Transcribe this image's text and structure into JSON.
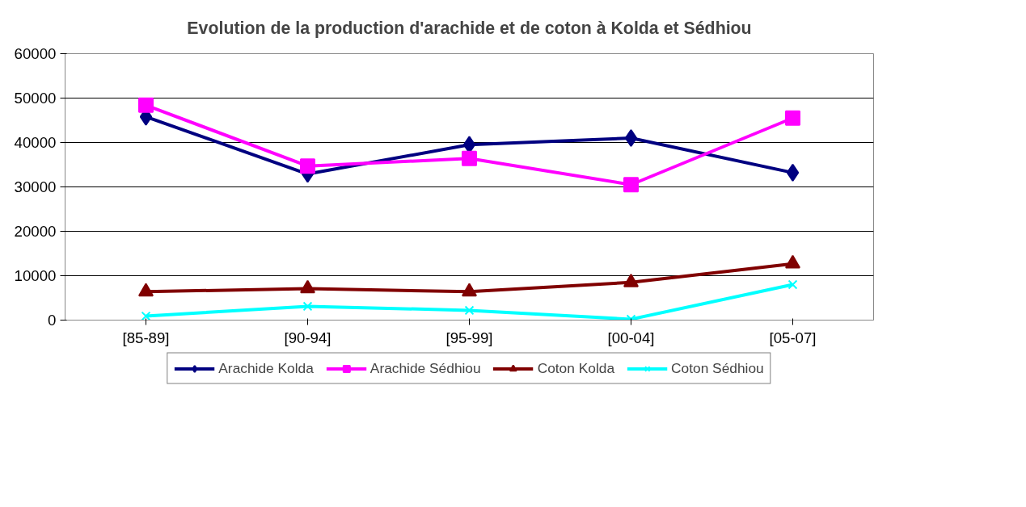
{
  "chart_data": {
    "type": "line",
    "title": "Evolution de la production d'arachide et de coton à Kolda et Sédhiou",
    "categories": [
      "[85-89]",
      "[90-94]",
      "[95-99]",
      "[00-04]",
      "[05-07]"
    ],
    "series": [
      {
        "name": "Arachide Kolda",
        "color": "#000080",
        "marker": "diamond",
        "values": [
          45800,
          32900,
          39500,
          41000,
          33200
        ]
      },
      {
        "name": "Arachide Sédhiou",
        "color": "#ff00ff",
        "marker": "square",
        "values": [
          48400,
          34700,
          36400,
          30500,
          45500
        ]
      },
      {
        "name": "Coton Kolda",
        "color": "#800000",
        "marker": "triangle",
        "values": [
          6400,
          7100,
          6400,
          8500,
          12700
        ]
      },
      {
        "name": "Coton Sédhiou",
        "color": "#00ffff",
        "marker": "cross",
        "values": [
          900,
          3100,
          2200,
          200,
          8000
        ]
      }
    ],
    "ylim": [
      0,
      60000
    ],
    "yticks": [
      0,
      10000,
      20000,
      30000,
      40000,
      50000,
      60000
    ],
    "grid": "y",
    "legend": "bottom",
    "line_style": "solid"
  }
}
